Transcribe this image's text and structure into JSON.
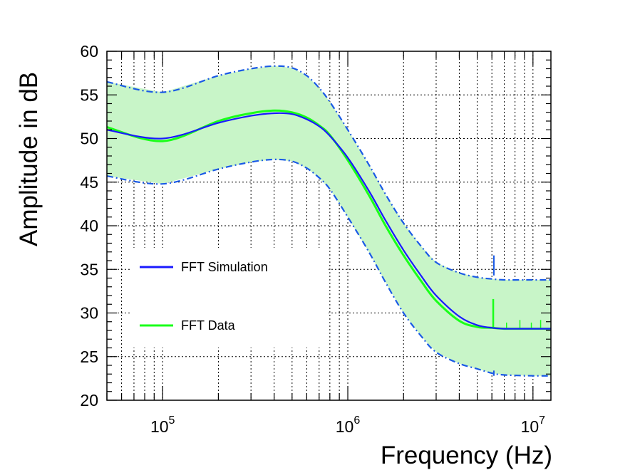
{
  "chart_data": {
    "type": "line",
    "x_scale": "log",
    "xlabel": "Frequency (Hz)",
    "ylabel": "Amplitude in dB",
    "xlim": [
      50000,
      12500000
    ],
    "ylim": [
      20,
      60
    ],
    "y_ticks": [
      20,
      25,
      30,
      35,
      40,
      45,
      50,
      55,
      60
    ],
    "x_major_ticks": [
      {
        "value": 100000,
        "base": "10",
        "exp": "5"
      },
      {
        "value": 1000000,
        "base": "10",
        "exp": "6"
      },
      {
        "value": 10000000,
        "base": "10",
        "exp": "7"
      }
    ],
    "grid": true,
    "legend_position": "left-middle",
    "colors": {
      "simulation": "#1a1aff",
      "data": "#1aff1a",
      "band_fill": "#c8f5c8",
      "band_edge": "#1a5ae6"
    },
    "series": [
      {
        "name": "FFT Simulation",
        "style": "solid",
        "x": [
          50000,
          100000,
          200000,
          300000,
          400000,
          500000,
          600000,
          700000,
          800000,
          1000000,
          1300000,
          1600000,
          2000000,
          2500000,
          3000000,
          4000000,
          5000000,
          6000000,
          7000000,
          10000000,
          12500000
        ],
        "y": [
          51,
          50.0,
          51.8,
          52.6,
          52.9,
          52.8,
          52.2,
          51.4,
          50.3,
          47.8,
          44.0,
          40.6,
          37.2,
          34.2,
          32.0,
          29.6,
          28.6,
          28.3,
          28.2,
          28.2,
          28.2
        ]
      },
      {
        "name": "FFT Data",
        "style": "solid",
        "spike": {
          "x": 6100000,
          "y": 31.6
        },
        "x": [
          50000,
          100000,
          200000,
          300000,
          400000,
          500000,
          600000,
          700000,
          800000,
          1000000,
          1300000,
          1600000,
          2000000,
          2500000,
          3000000,
          4000000,
          5000000,
          6000000,
          7000000,
          10000000,
          12500000
        ],
        "y": [
          51.3,
          49.7,
          52.0,
          52.9,
          53.2,
          53.0,
          52.4,
          51.5,
          50.4,
          47.5,
          43.5,
          40.0,
          36.6,
          33.6,
          31.4,
          29.1,
          28.4,
          28.3,
          28.2,
          28.2,
          28.2
        ]
      },
      {
        "name": "Upper bound",
        "style": "dash-dot",
        "spike": {
          "x": 6150000,
          "y": 36.6
        },
        "x": [
          50000,
          100000,
          200000,
          300000,
          400000,
          500000,
          600000,
          700000,
          800000,
          1000000,
          1300000,
          1600000,
          2000000,
          2500000,
          3000000,
          4000000,
          5000000,
          6000000,
          7000000,
          10000000,
          12500000
        ],
        "y": [
          56.5,
          55.3,
          57.2,
          58.0,
          58.3,
          58.1,
          57.2,
          55.8,
          54.2,
          51.0,
          47.0,
          43.6,
          40.3,
          37.6,
          35.8,
          34.6,
          34.1,
          33.9,
          33.8,
          33.8,
          33.8
        ]
      },
      {
        "name": "Lower bound",
        "style": "dash-dot",
        "spike": {
          "x": 6150000,
          "y": 22.8
        },
        "x": [
          50000,
          100000,
          200000,
          300000,
          400000,
          500000,
          600000,
          700000,
          800000,
          1000000,
          1300000,
          1600000,
          2000000,
          2500000,
          3000000,
          4000000,
          5000000,
          6000000,
          7000000,
          10000000,
          12500000
        ],
        "y": [
          45.7,
          44.8,
          46.5,
          47.3,
          47.6,
          47.4,
          46.6,
          45.5,
          44.2,
          41.0,
          37.0,
          33.5,
          30.0,
          27.3,
          25.5,
          24.2,
          23.6,
          23.1,
          22.9,
          22.8,
          22.8
        ]
      }
    ],
    "legend": [
      {
        "label": "FFT Simulation",
        "color": "#1a1aff"
      },
      {
        "label": "FFT Data",
        "color": "#1aff1a"
      }
    ]
  }
}
